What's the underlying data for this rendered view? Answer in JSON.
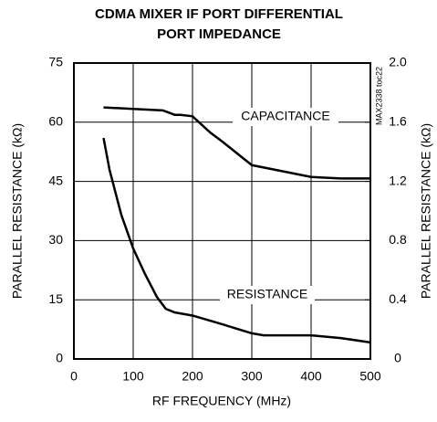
{
  "chart_data": {
    "type": "line",
    "title": [
      "CDMA MIXER IF PORT DIFFERENTIAL",
      "PORT IMPEDANCE"
    ],
    "xlabel": "RF FREQUENCY (MHz)",
    "ylabel": "PARALLEL RESISTANCE (kΩ)",
    "y2label": "PARALLEL RESISTANCE (kΩ)",
    "annotation": "MAX2338 toc22",
    "xlim": [
      0,
      500
    ],
    "xticks": [
      0,
      100,
      200,
      300,
      400,
      500
    ],
    "ylim": [
      0,
      75
    ],
    "yticks": [
      0,
      15,
      30,
      45,
      60,
      75
    ],
    "y2lim": [
      0,
      2
    ],
    "y2ticks": [
      0,
      0.4,
      0.8,
      1.2,
      1.6,
      {
        "value": 2,
        "label": "2.0"
      }
    ],
    "grid": true,
    "series": [
      {
        "name": "CAPACITANCE",
        "color": "#000000",
        "axis": "y2",
        "x": [
          50,
          100,
          150,
          170,
          180,
          200,
          230,
          250,
          300,
          350,
          400,
          450,
          500
        ],
        "values": [
          1.7,
          1.69,
          1.68,
          1.65,
          1.65,
          1.64,
          1.53,
          1.47,
          1.31,
          1.27,
          1.23,
          1.22,
          1.22
        ]
      },
      {
        "name": "RESISTANCE",
        "color": "#000000",
        "axis": "y",
        "x": [
          50,
          60,
          80,
          100,
          120,
          140,
          155,
          170,
          200,
          250,
          300,
          320,
          400,
          450,
          500
        ],
        "values": [
          56,
          48,
          36.5,
          28,
          21.5,
          15.7,
          12.7,
          11.8,
          11,
          8.8,
          6.5,
          6,
          6,
          5.3,
          4.2
        ]
      }
    ]
  }
}
